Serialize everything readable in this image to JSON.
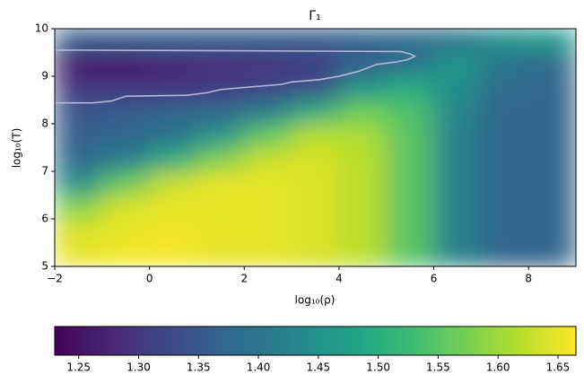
{
  "chart_data": {
    "type": "heatmap",
    "title": "Γ₁",
    "xlabel": "log₁₀(ρ)",
    "ylabel": "log₁₀(T)",
    "colormap": "viridis",
    "x": [
      -1.5,
      -0.5,
      0.5,
      1.5,
      2.5,
      3.5,
      4.5,
      5.5,
      6.5,
      7.5,
      8.5
    ],
    "y": [
      5.25,
      5.75,
      6.25,
      6.75,
      7.25,
      7.75,
      8.25,
      8.75,
      9.25,
      9.75
    ],
    "z": [
      [
        1.65,
        1.66,
        1.66,
        1.65,
        1.65,
        1.64,
        1.62,
        1.55,
        1.42,
        1.37,
        1.37
      ],
      [
        1.64,
        1.65,
        1.66,
        1.65,
        1.65,
        1.64,
        1.62,
        1.55,
        1.42,
        1.37,
        1.37
      ],
      [
        1.58,
        1.64,
        1.65,
        1.65,
        1.65,
        1.64,
        1.62,
        1.55,
        1.42,
        1.37,
        1.37
      ],
      [
        1.45,
        1.56,
        1.63,
        1.65,
        1.65,
        1.64,
        1.62,
        1.55,
        1.42,
        1.37,
        1.37
      ],
      [
        1.38,
        1.42,
        1.5,
        1.58,
        1.63,
        1.64,
        1.62,
        1.55,
        1.42,
        1.37,
        1.37
      ],
      [
        1.36,
        1.37,
        1.4,
        1.46,
        1.56,
        1.62,
        1.61,
        1.55,
        1.42,
        1.37,
        1.37
      ],
      [
        1.35,
        1.36,
        1.37,
        1.38,
        1.42,
        1.5,
        1.57,
        1.54,
        1.43,
        1.37,
        1.37
      ],
      [
        1.3,
        1.3,
        1.3,
        1.31,
        1.32,
        1.34,
        1.46,
        1.5,
        1.44,
        1.38,
        1.37
      ],
      [
        1.26,
        1.26,
        1.27,
        1.28,
        1.29,
        1.31,
        1.36,
        1.4,
        1.46,
        1.4,
        1.38
      ],
      [
        1.36,
        1.36,
        1.36,
        1.36,
        1.36,
        1.36,
        1.37,
        1.38,
        1.4,
        1.45,
        1.46
      ]
    ],
    "contour": {
      "color": "#b9b5d8",
      "x": [
        -2,
        5.3,
        5.5,
        5.6,
        5.45,
        5.2,
        4.8,
        4.4,
        4.0,
        3.6,
        3.0,
        2.8,
        1.5,
        1.2,
        0.8,
        -0.5,
        -0.8,
        -1.2,
        -2
      ],
      "y": [
        9.55,
        9.52,
        9.47,
        9.42,
        9.35,
        9.3,
        9.25,
        9.1,
        9.0,
        8.93,
        8.88,
        8.83,
        8.72,
        8.65,
        8.6,
        8.58,
        8.48,
        8.44,
        8.44
      ]
    },
    "xlim": [
      -2,
      9
    ],
    "ylim": [
      5,
      10
    ],
    "xticks": [
      {
        "value": -2,
        "label": "−2"
      },
      0,
      2,
      4,
      6,
      8
    ],
    "yticks": [
      5,
      6,
      7,
      8,
      9,
      10
    ],
    "clim": [
      1.23,
      1.665
    ],
    "cticks": [
      1.25,
      {
        "value": 1.3,
        "label": "1.30"
      },
      1.35,
      {
        "value": 1.4,
        "label": "1.40"
      },
      1.45,
      {
        "value": 1.5,
        "label": "1.50"
      },
      1.55,
      {
        "value": 1.6,
        "label": "1.60"
      },
      1.65
    ]
  }
}
